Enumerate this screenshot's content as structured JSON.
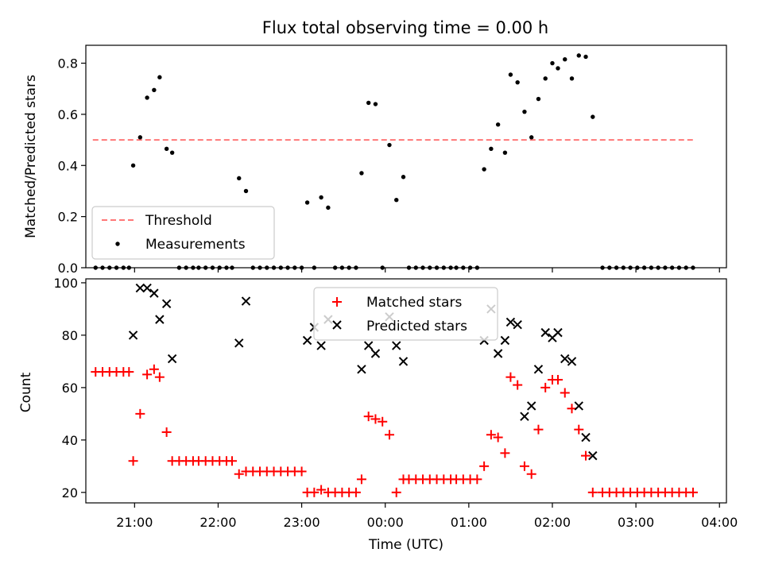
{
  "chart_data": [
    {
      "type": "scatter",
      "title": "Flux total observing time = 0.00 h",
      "xlabel": "",
      "ylabel": "Matched/Predicted stars",
      "xlim": [
        "20:25",
        "04:05"
      ],
      "ylim": [
        0,
        0.87
      ],
      "yticks": [
        "0.0",
        "0.2",
        "0.4",
        "0.6",
        "0.8"
      ],
      "grid": false,
      "legend_position": "lower-left",
      "threshold": {
        "name": "Threshold",
        "value": 0.5,
        "x_start": "20:30",
        "x_end": "03:43",
        "color": "#ff7777"
      },
      "series": [
        {
          "name": "Measurements",
          "color": "#000000",
          "points": [
            [
              "20:32",
              0
            ],
            [
              "20:37",
              0
            ],
            [
              "20:42",
              0
            ],
            [
              "20:47",
              0
            ],
            [
              "20:52",
              0
            ],
            [
              "20:56",
              0
            ],
            [
              "20:59",
              0.4
            ],
            [
              "21:04",
              0.51
            ],
            [
              "21:09",
              0.665
            ],
            [
              "21:14",
              0.695
            ],
            [
              "21:18",
              0.745
            ],
            [
              "21:23",
              0.465
            ],
            [
              "21:27",
              0.45
            ],
            [
              "21:32",
              0
            ],
            [
              "21:37",
              0
            ],
            [
              "21:42",
              0
            ],
            [
              "21:46",
              0
            ],
            [
              "21:51",
              0
            ],
            [
              "21:56",
              0
            ],
            [
              "22:01",
              0
            ],
            [
              "22:06",
              0
            ],
            [
              "22:10",
              0
            ],
            [
              "22:15",
              0.35
            ],
            [
              "22:20",
              0.3
            ],
            [
              "22:25",
              0
            ],
            [
              "22:30",
              0
            ],
            [
              "22:35",
              0
            ],
            [
              "22:40",
              0
            ],
            [
              "22:45",
              0
            ],
            [
              "22:50",
              0
            ],
            [
              "22:55",
              0
            ],
            [
              "23:00",
              0
            ],
            [
              "23:04",
              0.255
            ],
            [
              "23:09",
              0
            ],
            [
              "23:14",
              0.275
            ],
            [
              "23:19",
              0.235
            ],
            [
              "23:24",
              0
            ],
            [
              "23:29",
              0
            ],
            [
              "23:34",
              0
            ],
            [
              "23:39",
              0
            ],
            [
              "23:43",
              0.37
            ],
            [
              "23:48",
              0.645
            ],
            [
              "23:53",
              0.64
            ],
            [
              "23:58",
              0
            ],
            [
              "00:03",
              0.48
            ],
            [
              "00:08",
              0.265
            ],
            [
              "00:13",
              0.355
            ],
            [
              "00:17",
              0
            ],
            [
              "00:22",
              0
            ],
            [
              "00:27",
              0
            ],
            [
              "00:32",
              0
            ],
            [
              "00:37",
              0
            ],
            [
              "00:42",
              0
            ],
            [
              "00:47",
              0
            ],
            [
              "00:51",
              0
            ],
            [
              "00:56",
              0
            ],
            [
              "01:01",
              0
            ],
            [
              "01:06",
              0
            ],
            [
              "01:11",
              0.385
            ],
            [
              "01:16",
              0.465
            ],
            [
              "01:21",
              0.56
            ],
            [
              "01:26",
              0.45
            ],
            [
              "01:30",
              0.755
            ],
            [
              "01:35",
              0.725
            ],
            [
              "01:40",
              0.61
            ],
            [
              "01:45",
              0.51
            ],
            [
              "01:50",
              0.66
            ],
            [
              "01:55",
              0.74
            ],
            [
              "02:00",
              0.8
            ],
            [
              "02:04",
              0.78
            ],
            [
              "02:09",
              0.815
            ],
            [
              "02:14",
              0.74
            ],
            [
              "02:19",
              0.83
            ],
            [
              "02:24",
              0.825
            ],
            [
              "02:29",
              0.59
            ],
            [
              "02:36",
              0
            ],
            [
              "02:41",
              0
            ],
            [
              "02:46",
              0
            ],
            [
              "02:51",
              0
            ],
            [
              "02:56",
              0
            ],
            [
              "03:01",
              0
            ],
            [
              "03:06",
              0
            ],
            [
              "03:11",
              0
            ],
            [
              "03:16",
              0
            ],
            [
              "03:21",
              0
            ],
            [
              "03:26",
              0
            ],
            [
              "03:31",
              0
            ],
            [
              "03:36",
              0
            ],
            [
              "03:41",
              0
            ]
          ]
        }
      ]
    },
    {
      "type": "scatter",
      "title": "",
      "xlabel": "Time (UTC)",
      "ylabel": "Count",
      "xlim": [
        "20:25",
        "04:05"
      ],
      "ylim": [
        16,
        101.5
      ],
      "xticks": [
        "21:00",
        "22:00",
        "23:00",
        "00:00",
        "01:00",
        "02:00",
        "03:00",
        "04:00"
      ],
      "yticks": [
        "20",
        "40",
        "60",
        "80",
        "100"
      ],
      "grid": false,
      "legend_position": "upper-center",
      "series": [
        {
          "name": "Matched stars",
          "marker": "+",
          "color": "#ff0000",
          "points": [
            [
              "20:32",
              66
            ],
            [
              "20:37",
              66
            ],
            [
              "20:42",
              66
            ],
            [
              "20:47",
              66
            ],
            [
              "20:52",
              66
            ],
            [
              "20:56",
              66
            ],
            [
              "20:59",
              32
            ],
            [
              "21:04",
              50
            ],
            [
              "21:09",
              65
            ],
            [
              "21:14",
              67
            ],
            [
              "21:18",
              64
            ],
            [
              "21:23",
              43
            ],
            [
              "21:27",
              32
            ],
            [
              "21:32",
              32
            ],
            [
              "21:37",
              32
            ],
            [
              "21:42",
              32
            ],
            [
              "21:46",
              32
            ],
            [
              "21:51",
              32
            ],
            [
              "21:56",
              32
            ],
            [
              "22:01",
              32
            ],
            [
              "22:06",
              32
            ],
            [
              "22:10",
              32
            ],
            [
              "22:15",
              27
            ],
            [
              "22:20",
              28
            ],
            [
              "22:25",
              28
            ],
            [
              "22:30",
              28
            ],
            [
              "22:35",
              28
            ],
            [
              "22:40",
              28
            ],
            [
              "22:45",
              28
            ],
            [
              "22:50",
              28
            ],
            [
              "22:55",
              28
            ],
            [
              "23:00",
              28
            ],
            [
              "23:04",
              20
            ],
            [
              "23:09",
              20
            ],
            [
              "23:14",
              21
            ],
            [
              "23:19",
              20
            ],
            [
              "23:24",
              20
            ],
            [
              "23:29",
              20
            ],
            [
              "23:34",
              20
            ],
            [
              "23:39",
              20
            ],
            [
              "23:43",
              25
            ],
            [
              "23:48",
              49
            ],
            [
              "23:53",
              48
            ],
            [
              "23:58",
              47
            ],
            [
              "00:03",
              42
            ],
            [
              "00:08",
              20
            ],
            [
              "00:13",
              25
            ],
            [
              "00:17",
              25
            ],
            [
              "00:22",
              25
            ],
            [
              "00:27",
              25
            ],
            [
              "00:32",
              25
            ],
            [
              "00:37",
              25
            ],
            [
              "00:42",
              25
            ],
            [
              "00:47",
              25
            ],
            [
              "00:51",
              25
            ],
            [
              "00:56",
              25
            ],
            [
              "01:01",
              25
            ],
            [
              "01:06",
              25
            ],
            [
              "01:11",
              30
            ],
            [
              "01:16",
              42
            ],
            [
              "01:21",
              41
            ],
            [
              "01:26",
              35
            ],
            [
              "01:30",
              64
            ],
            [
              "01:35",
              61
            ],
            [
              "01:40",
              30
            ],
            [
              "01:45",
              27
            ],
            [
              "01:50",
              44
            ],
            [
              "01:55",
              60
            ],
            [
              "02:00",
              63
            ],
            [
              "02:04",
              63
            ],
            [
              "02:09",
              58
            ],
            [
              "02:14",
              52
            ],
            [
              "02:19",
              44
            ],
            [
              "02:24",
              34
            ],
            [
              "02:29",
              20
            ],
            [
              "02:36",
              20
            ],
            [
              "02:41",
              20
            ],
            [
              "02:46",
              20
            ],
            [
              "02:51",
              20
            ],
            [
              "02:56",
              20
            ],
            [
              "03:01",
              20
            ],
            [
              "03:06",
              20
            ],
            [
              "03:11",
              20
            ],
            [
              "03:16",
              20
            ],
            [
              "03:21",
              20
            ],
            [
              "03:26",
              20
            ],
            [
              "03:31",
              20
            ],
            [
              "03:36",
              20
            ],
            [
              "03:41",
              20
            ]
          ]
        },
        {
          "name": "Predicted stars",
          "marker": "x",
          "color": "#000000",
          "points": [
            [
              "20:59",
              80
            ],
            [
              "21:04",
              98
            ],
            [
              "21:09",
              98
            ],
            [
              "21:14",
              96
            ],
            [
              "21:18",
              86
            ],
            [
              "21:23",
              92
            ],
            [
              "21:27",
              71
            ],
            [
              "22:15",
              77
            ],
            [
              "22:20",
              93
            ],
            [
              "23:04",
              78
            ],
            [
              "23:09",
              83
            ],
            [
              "23:14",
              76
            ],
            [
              "23:19",
              86
            ],
            [
              "23:43",
              67
            ],
            [
              "23:48",
              76
            ],
            [
              "23:53",
              73
            ],
            [
              "00:03",
              87
            ],
            [
              "00:08",
              76
            ],
            [
              "00:13",
              70
            ],
            [
              "01:11",
              78
            ],
            [
              "01:16",
              90
            ],
            [
              "01:21",
              73
            ],
            [
              "01:26",
              78
            ],
            [
              "01:30",
              85
            ],
            [
              "01:35",
              84
            ],
            [
              "01:40",
              49
            ],
            [
              "01:45",
              53
            ],
            [
              "01:50",
              67
            ],
            [
              "01:55",
              81
            ],
            [
              "02:00",
              79
            ],
            [
              "02:04",
              81
            ],
            [
              "02:09",
              71
            ],
            [
              "02:14",
              70
            ],
            [
              "02:19",
              53
            ],
            [
              "02:24",
              41
            ],
            [
              "02:29",
              34
            ]
          ]
        }
      ]
    }
  ]
}
